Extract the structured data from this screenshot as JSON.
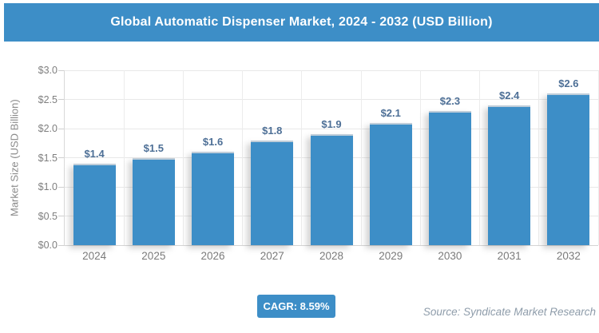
{
  "header": {
    "title": "Global Automatic Dispenser Market, 2024 - 2032 (USD Billion)"
  },
  "chart_data": {
    "type": "bar",
    "title": "Global Automatic Dispenser Market, 2024 - 2032 (USD Billion)",
    "categories": [
      "2024",
      "2025",
      "2026",
      "2027",
      "2028",
      "2029",
      "2030",
      "2031",
      "2032"
    ],
    "values": [
      1.4,
      1.5,
      1.6,
      1.8,
      1.9,
      2.1,
      2.3,
      2.4,
      2.6
    ],
    "bar_labels": [
      "$1.4",
      "$1.5",
      "$1.6",
      "$1.8",
      "$1.9",
      "$2.1",
      "$2.3",
      "$2.4",
      "$2.6"
    ],
    "xlabel": "",
    "ylabel": "Market Size (USD Billion)",
    "ylim": [
      0.0,
      3.0
    ],
    "ytick_step": 0.5,
    "yticks": [
      "$0.0",
      "$0.5",
      "$1.0",
      "$1.5",
      "$2.0",
      "$2.5",
      "$3.0"
    ],
    "grid": true,
    "legend": false
  },
  "footer": {
    "cagr_label": "CAGR: 8.59%",
    "source": "Source: Syndicate Market Research"
  },
  "colors": {
    "accent_blue": "#3d8ec7",
    "bar_fill": "#3d8ec7",
    "bar_top_edge": "#bfcdd9",
    "data_label": "#4d6f96",
    "axis_text": "#7f7f7f",
    "gridline": "#e8e8e8",
    "source_text": "#8e9caa",
    "title_text": "#ffffff"
  }
}
